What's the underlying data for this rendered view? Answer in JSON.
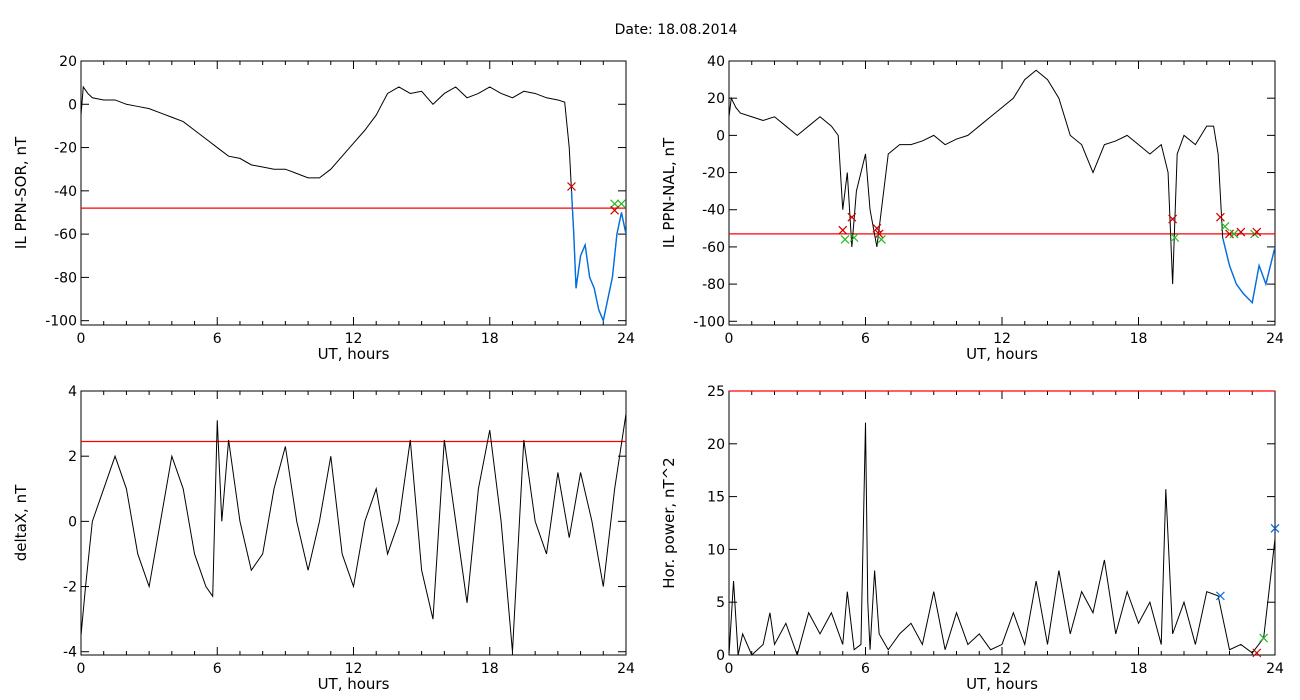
{
  "title": "Date:  18.08.2014",
  "colors": {
    "signal": "#000000",
    "threshold": "#ff0000",
    "highlight": "#0070e0",
    "marker_red": "#cc0000",
    "marker_green": "#22bb22",
    "marker_blue": "#0066dd"
  },
  "chart_data": [
    {
      "type": "line",
      "xlabel": "UT, hours",
      "ylabel": "IL PPN-SOR, nT",
      "xlim": [
        0,
        24
      ],
      "ylim": [
        -102,
        20
      ],
      "xticks": [
        0,
        6,
        12,
        18,
        24
      ],
      "yticks": [
        20,
        0,
        -20,
        -40,
        -60,
        -80,
        -100
      ],
      "threshold": -48,
      "highlight_range": [
        21.6,
        24
      ],
      "markers": [
        {
          "x": 21.6,
          "y": -38,
          "color": "red"
        },
        {
          "x": 23.5,
          "y": -46,
          "color": "green"
        },
        {
          "x": 23.8,
          "y": -46,
          "color": "green"
        },
        {
          "x": 23.5,
          "y": -49,
          "color": "red"
        }
      ],
      "series": [
        {
          "x": [
            0,
            0.1,
            0.3,
            0.5,
            1,
            1.5,
            2,
            2.5,
            3,
            3.5,
            4,
            4.5,
            5,
            5.5,
            6,
            6.5,
            7,
            7.5,
            8,
            8.5,
            9,
            9.5,
            10,
            10.5,
            11,
            11.5,
            12,
            12.5,
            13,
            13.5,
            14,
            14.5,
            15,
            15.5,
            16,
            16.5,
            17,
            17.5,
            18,
            18.5,
            19,
            19.5,
            20,
            20.5,
            21,
            21.3,
            21.5,
            21.6,
            21.7,
            21.8,
            22,
            22.2,
            22.4,
            22.6,
            22.8,
            23,
            23.2,
            23.4,
            23.6,
            23.8,
            24
          ],
          "y": [
            -5,
            8,
            5,
            3,
            2,
            2,
            0,
            -1,
            -2,
            -4,
            -6,
            -8,
            -12,
            -16,
            -20,
            -24,
            -25,
            -28,
            -29,
            -30,
            -30,
            -32,
            -34,
            -34,
            -30,
            -24,
            -18,
            -12,
            -5,
            5,
            8,
            5,
            6,
            0,
            5,
            8,
            3,
            5,
            8,
            5,
            3,
            6,
            5,
            3,
            2,
            1,
            -20,
            -40,
            -60,
            -85,
            -70,
            -65,
            -80,
            -85,
            -95,
            -100,
            -90,
            -80,
            -60,
            -50,
            -60
          ]
        }
      ]
    },
    {
      "type": "line",
      "xlabel": "UT, hours",
      "ylabel": "IL PPN-NAL, nT",
      "xlim": [
        0,
        24
      ],
      "ylim": [
        -102,
        40
      ],
      "xticks": [
        0,
        6,
        12,
        18,
        24
      ],
      "yticks": [
        40,
        20,
        0,
        -20,
        -40,
        -60,
        -80,
        -100
      ],
      "threshold": -53,
      "highlight_range": [
        21.6,
        24
      ],
      "markers": [
        {
          "x": 5.0,
          "y": -51,
          "color": "red"
        },
        {
          "x": 5.1,
          "y": -56,
          "color": "green"
        },
        {
          "x": 5.4,
          "y": -44,
          "color": "red"
        },
        {
          "x": 5.5,
          "y": -55,
          "color": "green"
        },
        {
          "x": 6.5,
          "y": -50,
          "color": "red"
        },
        {
          "x": 6.6,
          "y": -53,
          "color": "red"
        },
        {
          "x": 6.7,
          "y": -56,
          "color": "green"
        },
        {
          "x": 19.5,
          "y": -45,
          "color": "red"
        },
        {
          "x": 19.6,
          "y": -55,
          "color": "green"
        },
        {
          "x": 21.6,
          "y": -44,
          "color": "red"
        },
        {
          "x": 21.8,
          "y": -49,
          "color": "green"
        },
        {
          "x": 22.0,
          "y": -53,
          "color": "red"
        },
        {
          "x": 22.2,
          "y": -53,
          "color": "green"
        },
        {
          "x": 22.5,
          "y": -52,
          "color": "red"
        },
        {
          "x": 23.1,
          "y": -53,
          "color": "green"
        },
        {
          "x": 23.2,
          "y": -52,
          "color": "red"
        }
      ],
      "series": [
        {
          "x": [
            0,
            0.1,
            0.3,
            0.5,
            1,
            1.5,
            2,
            2.5,
            3,
            3.5,
            4,
            4.5,
            4.8,
            5.0,
            5.2,
            5.4,
            5.6,
            5.8,
            6.0,
            6.2,
            6.5,
            6.7,
            7.0,
            7.5,
            8,
            8.5,
            9,
            9.5,
            10,
            10.5,
            11,
            11.5,
            12,
            12.5,
            13,
            13.5,
            14,
            14.5,
            15,
            15.5,
            16,
            16.5,
            17,
            17.5,
            18,
            18.5,
            19,
            19.3,
            19.5,
            19.7,
            20,
            20.5,
            21,
            21.3,
            21.5,
            21.7,
            22,
            22.3,
            22.6,
            23,
            23.3,
            23.6,
            24
          ],
          "y": [
            10,
            20,
            15,
            12,
            10,
            8,
            10,
            5,
            0,
            5,
            10,
            5,
            0,
            -40,
            -20,
            -60,
            -30,
            -20,
            -10,
            -40,
            -60,
            -40,
            -10,
            -5,
            -5,
            -3,
            0,
            -5,
            -2,
            0,
            5,
            10,
            15,
            20,
            30,
            35,
            30,
            20,
            0,
            -5,
            -20,
            -5,
            -3,
            0,
            -5,
            -10,
            -5,
            -20,
            -80,
            -10,
            0,
            -5,
            5,
            5,
            -10,
            -55,
            -70,
            -80,
            -85,
            -90,
            -70,
            -80,
            -60
          ]
        }
      ]
    },
    {
      "type": "line",
      "xlabel": "UT, hours",
      "ylabel": "deltaX, nT",
      "xlim": [
        0,
        24
      ],
      "ylim": [
        -4.1,
        4
      ],
      "xticks": [
        0,
        6,
        12,
        18,
        24
      ],
      "yticks": [
        4,
        2,
        0,
        -2,
        -4
      ],
      "threshold": 2.45,
      "highlight_range": null,
      "markers": [],
      "series": [
        {
          "x": [
            0,
            0.2,
            0.5,
            1,
            1.5,
            2,
            2.5,
            3,
            3.5,
            4,
            4.5,
            5,
            5.5,
            5.8,
            6.0,
            6.2,
            6.5,
            7,
            7.5,
            8,
            8.5,
            9,
            9.5,
            10,
            10.5,
            11,
            11.5,
            12,
            12.5,
            13,
            13.5,
            14,
            14.5,
            15,
            15.5,
            16,
            16.5,
            17,
            17.5,
            18,
            18.5,
            19,
            19.5,
            20,
            20.5,
            21,
            21.5,
            22,
            22.5,
            23,
            23.5,
            24
          ],
          "y": [
            -3.5,
            -2,
            0,
            1,
            2,
            1,
            -1,
            -2,
            0,
            2,
            1,
            -1,
            -2,
            -2.3,
            3.1,
            0,
            2.5,
            0,
            -1.5,
            -1,
            1,
            2.3,
            0,
            -1.5,
            0,
            2,
            -1,
            -2,
            0,
            1,
            -1,
            0,
            2.5,
            -1.5,
            -3,
            2.5,
            0,
            -2.5,
            1,
            2.8,
            0,
            -4,
            2.5,
            0,
            -1,
            1.5,
            -0.5,
            1.5,
            0,
            -2,
            1,
            3.3
          ]
        }
      ]
    },
    {
      "type": "line",
      "xlabel": "UT, hours",
      "ylabel": "Hor. power, nT^2",
      "xlim": [
        0,
        24
      ],
      "ylim": [
        0,
        25
      ],
      "xticks": [
        0,
        6,
        12,
        18,
        24
      ],
      "yticks": [
        25,
        20,
        15,
        10,
        5,
        0
      ],
      "threshold": 25,
      "highlight_range": null,
      "markers": [
        {
          "x": 21.6,
          "y": 5.6,
          "color": "blue"
        },
        {
          "x": 23.5,
          "y": 1.6,
          "color": "green"
        },
        {
          "x": 23.2,
          "y": 0.2,
          "color": "red"
        },
        {
          "x": 24,
          "y": 12,
          "color": "blue"
        }
      ],
      "series": [
        {
          "x": [
            0,
            0.2,
            0.4,
            0.6,
            1,
            1.5,
            1.8,
            2,
            2.5,
            3,
            3.5,
            4,
            4.5,
            5,
            5.2,
            5.5,
            5.8,
            6.0,
            6.1,
            6.2,
            6.4,
            6.6,
            7,
            7.5,
            8,
            8.5,
            9,
            9.5,
            10,
            10.5,
            11,
            11.5,
            12,
            12.5,
            13,
            13.5,
            14,
            14.5,
            15,
            15.5,
            16,
            16.5,
            17,
            17.5,
            18,
            18.5,
            19,
            19.2,
            19.5,
            20,
            20.5,
            21,
            21.5,
            22,
            22.5,
            23,
            23.5,
            24
          ],
          "y": [
            0,
            7,
            0,
            2,
            0,
            1,
            4,
            1,
            3,
            0,
            4,
            2,
            4,
            1,
            6,
            0.5,
            1,
            22,
            5,
            0.5,
            8,
            2,
            0.5,
            2,
            3,
            1,
            6,
            0.5,
            4,
            1,
            2,
            0.5,
            1,
            4,
            1,
            7,
            1,
            8,
            2,
            6,
            4,
            9,
            2,
            6,
            3,
            5,
            1,
            15.7,
            2,
            5,
            1,
            6,
            5.6,
            0.5,
            1,
            0.2,
            1.6,
            11
          ]
        }
      ]
    }
  ]
}
